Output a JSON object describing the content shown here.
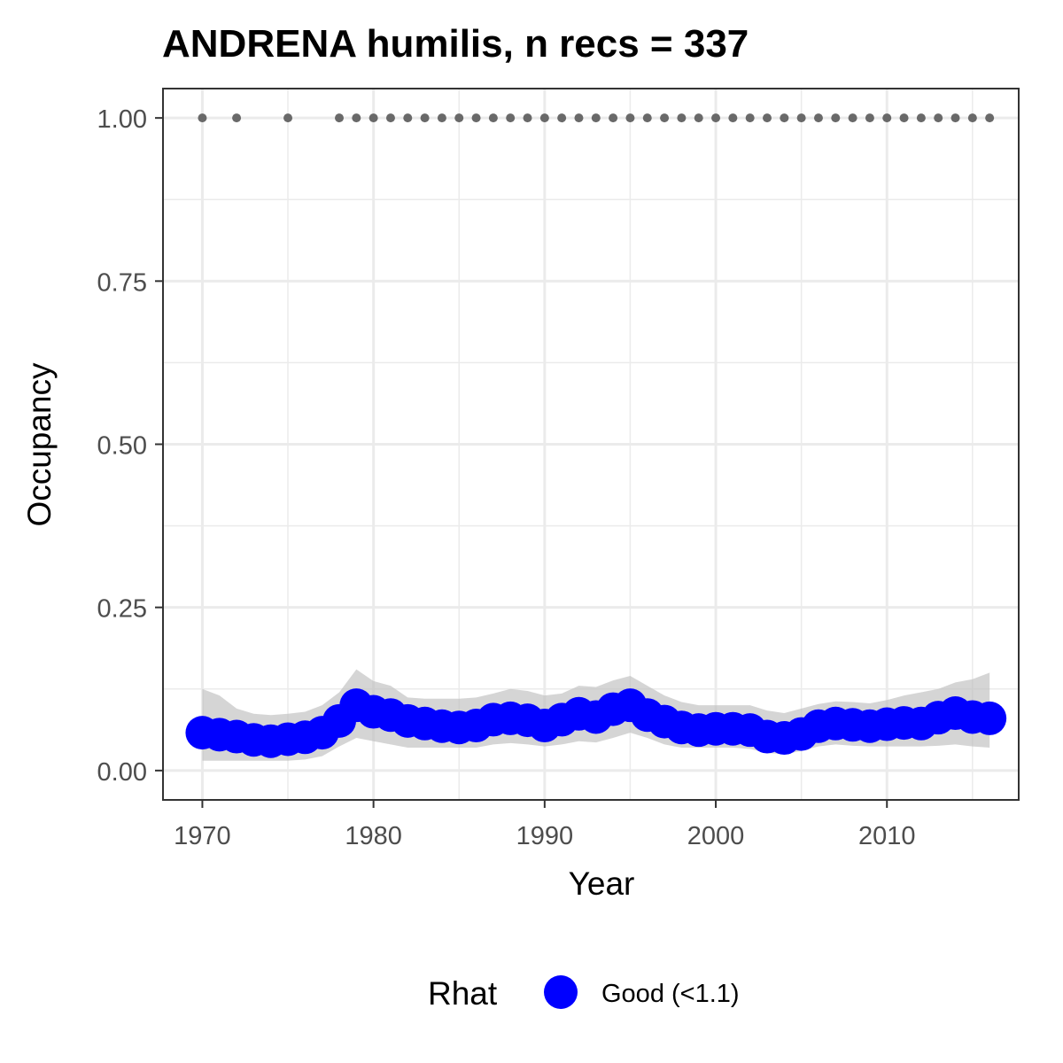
{
  "chart_data": {
    "type": "line",
    "title": "ANDRENA humilis, n recs = 337",
    "xlabel": "Year",
    "ylabel": "Occupancy",
    "xlim": [
      1967.7,
      2017.7
    ],
    "ylim": [
      -0.045,
      1.045
    ],
    "x_ticks": [
      1970,
      1980,
      1990,
      2000,
      2010
    ],
    "x_tick_labels": [
      "1970",
      "1980",
      "1990",
      "2000",
      "2010"
    ],
    "y_ticks": [
      0,
      0.25,
      0.5,
      0.75,
      1.0
    ],
    "y_tick_labels": [
      "0.00",
      "0.25",
      "0.50",
      "0.75",
      "1.00"
    ],
    "grid": true,
    "legend_position": "bottom",
    "legend": {
      "title": "Rhat",
      "entries": [
        {
          "label": "Good (<1.1)",
          "color": "#0000ff"
        }
      ]
    },
    "colors": {
      "points": "#0000ff",
      "ribbon": "#bebebe",
      "records": "#696969"
    },
    "series": [
      {
        "name": "Good (<1.1)",
        "x": [
          1970,
          1971,
          1972,
          1973,
          1974,
          1975,
          1976,
          1977,
          1978,
          1979,
          1980,
          1981,
          1982,
          1983,
          1984,
          1985,
          1986,
          1987,
          1988,
          1989,
          1990,
          1991,
          1992,
          1993,
          1994,
          1995,
          1996,
          1997,
          1998,
          1999,
          2000,
          2001,
          2002,
          2003,
          2004,
          2005,
          2006,
          2007,
          2008,
          2009,
          2010,
          2011,
          2012,
          2013,
          2014,
          2015,
          2016
        ],
        "y": [
          0.058,
          0.055,
          0.052,
          0.047,
          0.045,
          0.048,
          0.051,
          0.058,
          0.076,
          0.1,
          0.09,
          0.085,
          0.076,
          0.072,
          0.068,
          0.066,
          0.069,
          0.078,
          0.08,
          0.077,
          0.069,
          0.078,
          0.087,
          0.082,
          0.094,
          0.1,
          0.085,
          0.075,
          0.066,
          0.062,
          0.064,
          0.064,
          0.062,
          0.052,
          0.05,
          0.056,
          0.068,
          0.072,
          0.07,
          0.068,
          0.071,
          0.073,
          0.072,
          0.081,
          0.088,
          0.082,
          0.08
        ],
        "lower": [
          0.015,
          0.015,
          0.015,
          0.015,
          0.015,
          0.015,
          0.017,
          0.022,
          0.037,
          0.05,
          0.045,
          0.04,
          0.035,
          0.035,
          0.035,
          0.035,
          0.035,
          0.04,
          0.042,
          0.04,
          0.037,
          0.04,
          0.045,
          0.043,
          0.05,
          0.058,
          0.05,
          0.04,
          0.035,
          0.035,
          0.035,
          0.035,
          0.033,
          0.027,
          0.025,
          0.03,
          0.037,
          0.04,
          0.038,
          0.037,
          0.037,
          0.037,
          0.037,
          0.038,
          0.04,
          0.037,
          0.035
        ],
        "upper": [
          0.125,
          0.115,
          0.095,
          0.087,
          0.085,
          0.087,
          0.09,
          0.1,
          0.12,
          0.155,
          0.137,
          0.13,
          0.112,
          0.11,
          0.11,
          0.11,
          0.112,
          0.118,
          0.125,
          0.122,
          0.115,
          0.118,
          0.13,
          0.128,
          0.138,
          0.145,
          0.13,
          0.115,
          0.105,
          0.1,
          0.1,
          0.1,
          0.1,
          0.092,
          0.088,
          0.095,
          0.102,
          0.106,
          0.105,
          0.103,
          0.108,
          0.115,
          0.12,
          0.125,
          0.135,
          0.14,
          0.15
        ]
      }
    ],
    "record_years": [
      1970,
      1972,
      1975,
      1978,
      1979,
      1980,
      1981,
      1982,
      1983,
      1984,
      1985,
      1986,
      1987,
      1988,
      1989,
      1990,
      1991,
      1992,
      1993,
      1994,
      1995,
      1996,
      1997,
      1998,
      1999,
      2000,
      2001,
      2002,
      2003,
      2004,
      2005,
      2006,
      2007,
      2008,
      2009,
      2010,
      2011,
      2012,
      2013,
      2014,
      2015,
      2016
    ],
    "record_value": 1.0
  }
}
